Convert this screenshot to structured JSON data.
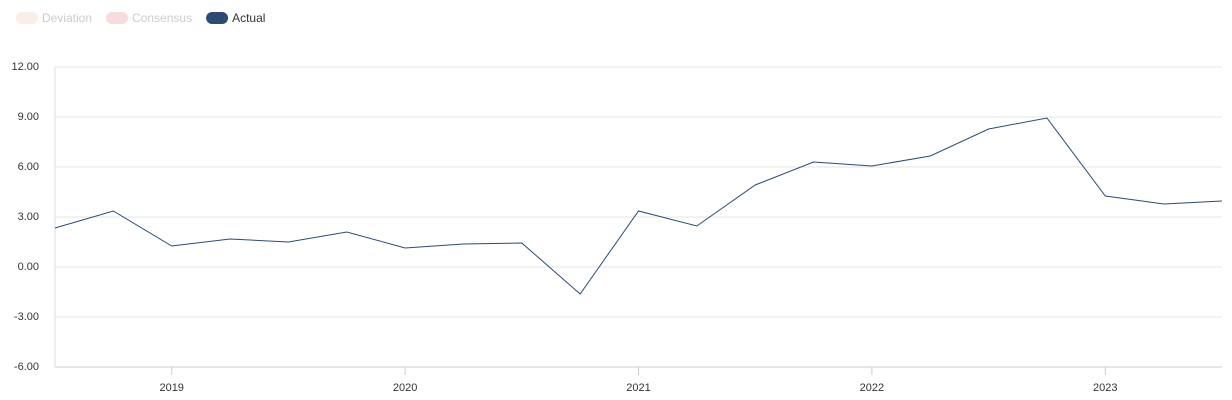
{
  "chart_data": {
    "type": "line",
    "x": [
      2018.5,
      2018.75,
      2019,
      2019.25,
      2019.5,
      2019.75,
      2020,
      2020.25,
      2020.5,
      2020.75,
      2021,
      2021.25,
      2021.5,
      2021.75,
      2022,
      2022.25,
      2022.5,
      2022.75,
      2023,
      2023.25,
      2023.5
    ],
    "series": [
      {
        "name": "Actual",
        "color": "#2d4a73",
        "values": [
          2.34,
          3.36,
          1.26,
          1.68,
          1.5,
          2.1,
          1.14,
          1.38,
          1.44,
          -1.62,
          3.36,
          2.46,
          4.92,
          6.3,
          6.06,
          6.66,
          8.28,
          8.94,
          4.26,
          3.78,
          3.96
        ]
      }
    ],
    "inactive_legend": [
      {
        "name": "Deviation",
        "color": "#fbeee6"
      },
      {
        "name": "Consensus",
        "color": "#f6dcdc"
      }
    ],
    "xlim": [
      2018.5,
      2023.5
    ],
    "xticks": [
      2019,
      2020,
      2021,
      2022,
      2023
    ],
    "ylim": [
      -6,
      12
    ],
    "yticks": [
      {
        "value": -6,
        "label": "-6.00"
      },
      {
        "value": -3,
        "label": "-3.00"
      },
      {
        "value": 0,
        "label": "0.00"
      },
      {
        "value": 3,
        "label": "3.00"
      },
      {
        "value": 6,
        "label": "6.00"
      },
      {
        "value": 9,
        "label": "9.00"
      },
      {
        "value": 12,
        "label": "12.00"
      }
    ],
    "grid": true
  }
}
